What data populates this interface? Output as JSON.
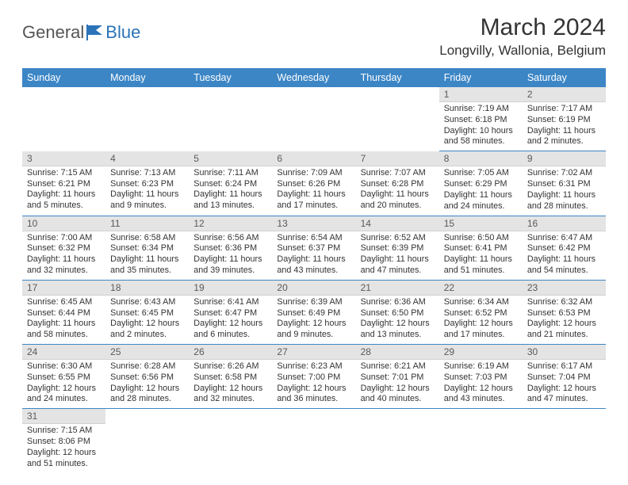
{
  "brand": {
    "general": "General",
    "blue": "Blue"
  },
  "title": "March 2024",
  "location": "Longvilly, Wallonia, Belgium",
  "colors": {
    "header_bg": "#3c86c6",
    "header_text": "#ffffff",
    "daynum_bg": "#e4e4e4",
    "row_divider": "#3c86c6",
    "body_text": "#333333",
    "brand_gray": "#555555",
    "brand_blue": "#2a73b8"
  },
  "day_headers": [
    "Sunday",
    "Monday",
    "Tuesday",
    "Wednesday",
    "Thursday",
    "Friday",
    "Saturday"
  ],
  "weeks": [
    [
      null,
      null,
      null,
      null,
      null,
      {
        "n": "1",
        "sr": "Sunrise: 7:19 AM",
        "ss": "Sunset: 6:18 PM",
        "dl": "Daylight: 10 hours and 58 minutes."
      },
      {
        "n": "2",
        "sr": "Sunrise: 7:17 AM",
        "ss": "Sunset: 6:19 PM",
        "dl": "Daylight: 11 hours and 2 minutes."
      }
    ],
    [
      {
        "n": "3",
        "sr": "Sunrise: 7:15 AM",
        "ss": "Sunset: 6:21 PM",
        "dl": "Daylight: 11 hours and 5 minutes."
      },
      {
        "n": "4",
        "sr": "Sunrise: 7:13 AM",
        "ss": "Sunset: 6:23 PM",
        "dl": "Daylight: 11 hours and 9 minutes."
      },
      {
        "n": "5",
        "sr": "Sunrise: 7:11 AM",
        "ss": "Sunset: 6:24 PM",
        "dl": "Daylight: 11 hours and 13 minutes."
      },
      {
        "n": "6",
        "sr": "Sunrise: 7:09 AM",
        "ss": "Sunset: 6:26 PM",
        "dl": "Daylight: 11 hours and 17 minutes."
      },
      {
        "n": "7",
        "sr": "Sunrise: 7:07 AM",
        "ss": "Sunset: 6:28 PM",
        "dl": "Daylight: 11 hours and 20 minutes."
      },
      {
        "n": "8",
        "sr": "Sunrise: 7:05 AM",
        "ss": "Sunset: 6:29 PM",
        "dl": "Daylight: 11 hours and 24 minutes."
      },
      {
        "n": "9",
        "sr": "Sunrise: 7:02 AM",
        "ss": "Sunset: 6:31 PM",
        "dl": "Daylight: 11 hours and 28 minutes."
      }
    ],
    [
      {
        "n": "10",
        "sr": "Sunrise: 7:00 AM",
        "ss": "Sunset: 6:32 PM",
        "dl": "Daylight: 11 hours and 32 minutes."
      },
      {
        "n": "11",
        "sr": "Sunrise: 6:58 AM",
        "ss": "Sunset: 6:34 PM",
        "dl": "Daylight: 11 hours and 35 minutes."
      },
      {
        "n": "12",
        "sr": "Sunrise: 6:56 AM",
        "ss": "Sunset: 6:36 PM",
        "dl": "Daylight: 11 hours and 39 minutes."
      },
      {
        "n": "13",
        "sr": "Sunrise: 6:54 AM",
        "ss": "Sunset: 6:37 PM",
        "dl": "Daylight: 11 hours and 43 minutes."
      },
      {
        "n": "14",
        "sr": "Sunrise: 6:52 AM",
        "ss": "Sunset: 6:39 PM",
        "dl": "Daylight: 11 hours and 47 minutes."
      },
      {
        "n": "15",
        "sr": "Sunrise: 6:50 AM",
        "ss": "Sunset: 6:41 PM",
        "dl": "Daylight: 11 hours and 51 minutes."
      },
      {
        "n": "16",
        "sr": "Sunrise: 6:47 AM",
        "ss": "Sunset: 6:42 PM",
        "dl": "Daylight: 11 hours and 54 minutes."
      }
    ],
    [
      {
        "n": "17",
        "sr": "Sunrise: 6:45 AM",
        "ss": "Sunset: 6:44 PM",
        "dl": "Daylight: 11 hours and 58 minutes."
      },
      {
        "n": "18",
        "sr": "Sunrise: 6:43 AM",
        "ss": "Sunset: 6:45 PM",
        "dl": "Daylight: 12 hours and 2 minutes."
      },
      {
        "n": "19",
        "sr": "Sunrise: 6:41 AM",
        "ss": "Sunset: 6:47 PM",
        "dl": "Daylight: 12 hours and 6 minutes."
      },
      {
        "n": "20",
        "sr": "Sunrise: 6:39 AM",
        "ss": "Sunset: 6:49 PM",
        "dl": "Daylight: 12 hours and 9 minutes."
      },
      {
        "n": "21",
        "sr": "Sunrise: 6:36 AM",
        "ss": "Sunset: 6:50 PM",
        "dl": "Daylight: 12 hours and 13 minutes."
      },
      {
        "n": "22",
        "sr": "Sunrise: 6:34 AM",
        "ss": "Sunset: 6:52 PM",
        "dl": "Daylight: 12 hours and 17 minutes."
      },
      {
        "n": "23",
        "sr": "Sunrise: 6:32 AM",
        "ss": "Sunset: 6:53 PM",
        "dl": "Daylight: 12 hours and 21 minutes."
      }
    ],
    [
      {
        "n": "24",
        "sr": "Sunrise: 6:30 AM",
        "ss": "Sunset: 6:55 PM",
        "dl": "Daylight: 12 hours and 24 minutes."
      },
      {
        "n": "25",
        "sr": "Sunrise: 6:28 AM",
        "ss": "Sunset: 6:56 PM",
        "dl": "Daylight: 12 hours and 28 minutes."
      },
      {
        "n": "26",
        "sr": "Sunrise: 6:26 AM",
        "ss": "Sunset: 6:58 PM",
        "dl": "Daylight: 12 hours and 32 minutes."
      },
      {
        "n": "27",
        "sr": "Sunrise: 6:23 AM",
        "ss": "Sunset: 7:00 PM",
        "dl": "Daylight: 12 hours and 36 minutes."
      },
      {
        "n": "28",
        "sr": "Sunrise: 6:21 AM",
        "ss": "Sunset: 7:01 PM",
        "dl": "Daylight: 12 hours and 40 minutes."
      },
      {
        "n": "29",
        "sr": "Sunrise: 6:19 AM",
        "ss": "Sunset: 7:03 PM",
        "dl": "Daylight: 12 hours and 43 minutes."
      },
      {
        "n": "30",
        "sr": "Sunrise: 6:17 AM",
        "ss": "Sunset: 7:04 PM",
        "dl": "Daylight: 12 hours and 47 minutes."
      }
    ],
    [
      {
        "n": "31",
        "sr": "Sunrise: 7:15 AM",
        "ss": "Sunset: 8:06 PM",
        "dl": "Daylight: 12 hours and 51 minutes."
      },
      null,
      null,
      null,
      null,
      null,
      null
    ]
  ]
}
